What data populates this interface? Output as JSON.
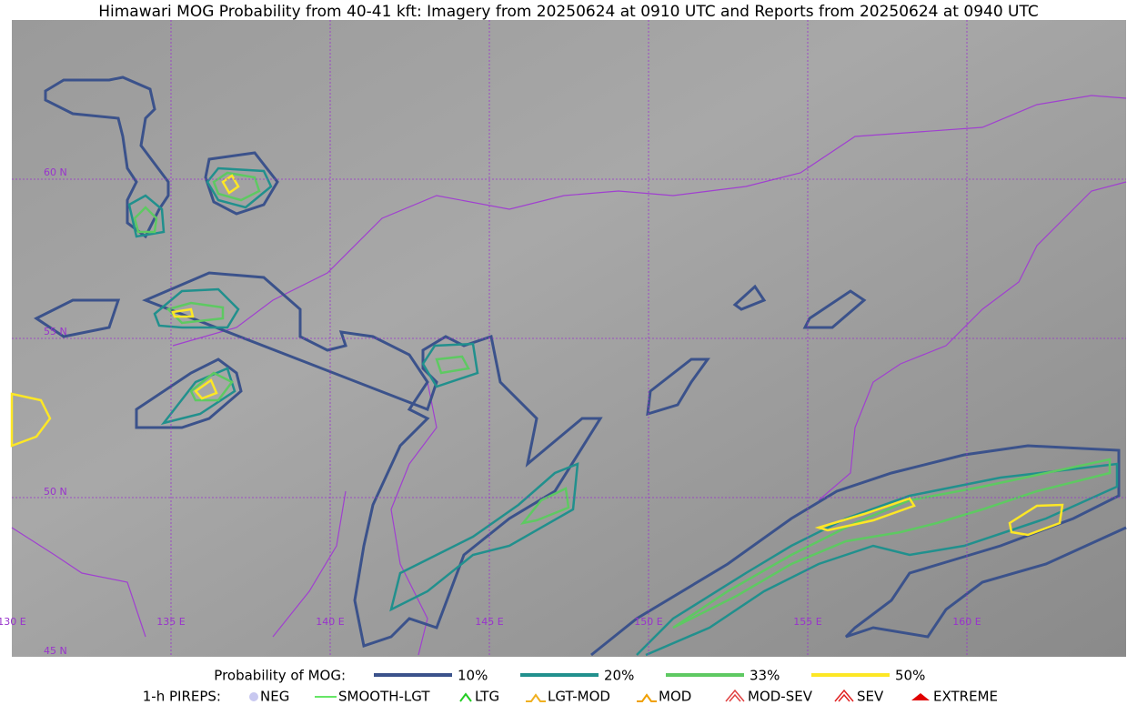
{
  "title": "Himawari MOG Probability from 40-41 kft: Imagery from 20250624 at 0910 UTC and Reports from 20250624 at 0940 UTC",
  "map": {
    "lat_labels": [
      "60 N",
      "55 N",
      "50 N",
      "45 N"
    ],
    "lon_labels": [
      "130 E",
      "135 E",
      "140 E",
      "145 E",
      "150 E",
      "155 E",
      "160 E"
    ]
  },
  "legend": {
    "probability": {
      "label": "Probability of MOG:",
      "items": [
        {
          "label": "10%",
          "color": "#3b528b"
        },
        {
          "label": "20%",
          "color": "#21908d"
        },
        {
          "label": "33%",
          "color": "#5ec962"
        },
        {
          "label": "50%",
          "color": "#fde725"
        }
      ]
    },
    "pireps": {
      "label": "1-h PIREPS:",
      "items": [
        {
          "label": "NEG",
          "color": "#c8c8f0"
        },
        {
          "label": "SMOOTH-LGT",
          "color": "#33dd33"
        },
        {
          "label": "LTG",
          "color": "#22cc22"
        },
        {
          "label": "LGT-MOD",
          "color": "#f0b020"
        },
        {
          "label": "MOD",
          "color": "#f0a000"
        },
        {
          "label": "MOD-SEV",
          "color": "#e04040"
        },
        {
          "label": "SEV",
          "color": "#e02020"
        },
        {
          "label": "EXTREME",
          "color": "#e00000"
        }
      ]
    }
  }
}
